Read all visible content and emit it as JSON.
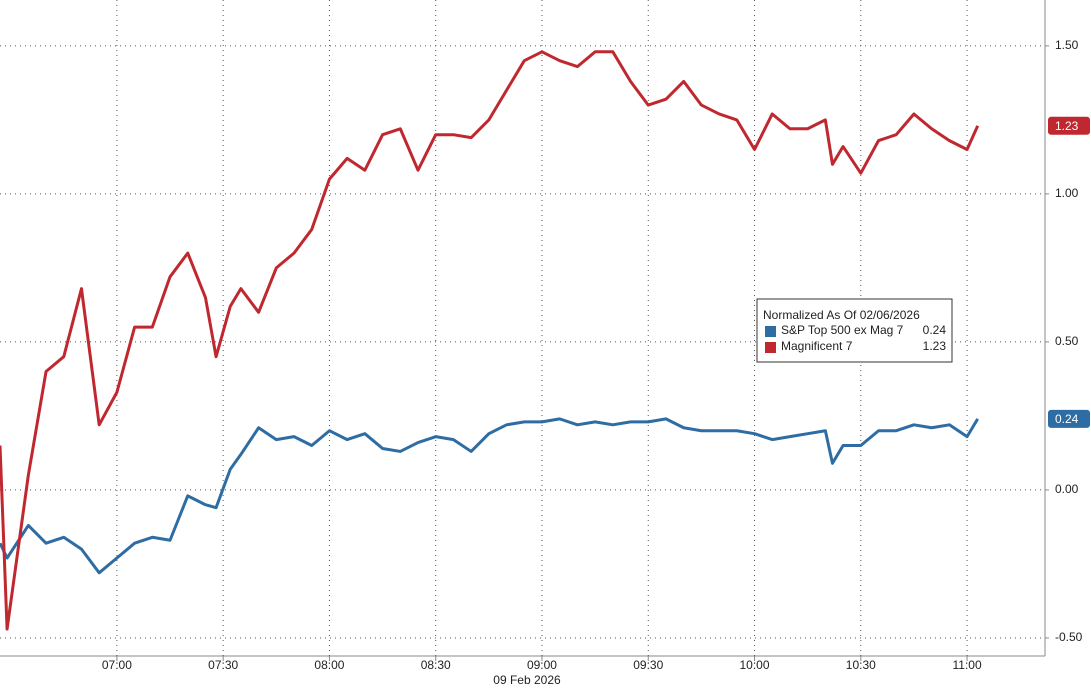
{
  "chart_data": {
    "type": "line",
    "x_label": "09 Feb 2026",
    "legend_title": "Normalized As Of 02/06/2026",
    "x": [
      "06:27",
      "06:29",
      "06:35",
      "06:40",
      "06:45",
      "06:50",
      "06:55",
      "07:00",
      "07:05",
      "07:10",
      "07:15",
      "07:20",
      "07:25",
      "07:28",
      "07:32",
      "07:35",
      "07:40",
      "07:45",
      "07:50",
      "07:55",
      "08:00",
      "08:05",
      "08:10",
      "08:15",
      "08:20",
      "08:25",
      "08:30",
      "08:35",
      "08:40",
      "08:45",
      "08:50",
      "08:55",
      "09:00",
      "09:05",
      "09:10",
      "09:15",
      "09:20",
      "09:25",
      "09:30",
      "09:35",
      "09:40",
      "09:45",
      "09:50",
      "09:55",
      "10:00",
      "10:05",
      "10:10",
      "10:15",
      "10:20",
      "10:22",
      "10:25",
      "10:30",
      "10:35",
      "10:40",
      "10:45",
      "10:50",
      "10:55",
      "11:00",
      "11:03"
    ],
    "series": [
      {
        "name": "S&P Top 500 ex Mag 7",
        "color": "#2e6ca4",
        "values": [
          -0.18,
          -0.23,
          -0.12,
          -0.18,
          -0.16,
          -0.2,
          -0.28,
          -0.23,
          -0.18,
          -0.16,
          -0.17,
          -0.02,
          -0.05,
          -0.06,
          0.07,
          0.12,
          0.21,
          0.17,
          0.18,
          0.15,
          0.2,
          0.17,
          0.19,
          0.14,
          0.13,
          0.16,
          0.18,
          0.17,
          0.13,
          0.19,
          0.22,
          0.23,
          0.23,
          0.24,
          0.22,
          0.23,
          0.22,
          0.23,
          0.23,
          0.24,
          0.21,
          0.2,
          0.2,
          0.2,
          0.19,
          0.17,
          0.18,
          0.19,
          0.2,
          0.09,
          0.15,
          0.15,
          0.2,
          0.2,
          0.22,
          0.21,
          0.22,
          0.18,
          0.24
        ]
      },
      {
        "name": "Magnificent 7",
        "color": "#c0282f",
        "values": [
          0.15,
          -0.47,
          0.05,
          0.4,
          0.45,
          0.68,
          0.22,
          0.33,
          0.55,
          0.55,
          0.72,
          0.8,
          0.65,
          0.45,
          0.62,
          0.68,
          0.6,
          0.75,
          0.8,
          0.88,
          1.05,
          1.12,
          1.08,
          1.2,
          1.22,
          1.08,
          1.2,
          1.2,
          1.19,
          1.25,
          1.35,
          1.45,
          1.48,
          1.45,
          1.43,
          1.48,
          1.48,
          1.38,
          1.3,
          1.32,
          1.38,
          1.3,
          1.27,
          1.25,
          1.15,
          1.27,
          1.22,
          1.22,
          1.25,
          1.1,
          1.16,
          1.07,
          1.18,
          1.2,
          1.27,
          1.22,
          1.18,
          1.15,
          1.23
        ]
      }
    ],
    "xlim": [
      "06:27",
      "11:22"
    ],
    "xticks": [
      "07:00",
      "07:30",
      "08:00",
      "08:30",
      "09:00",
      "09:30",
      "10:00",
      "10:30",
      "11:00"
    ],
    "ylim": [
      -0.561,
      1.655
    ],
    "yticks": [
      {
        "value": 1.5,
        "label": "1.50"
      },
      {
        "value": 1.0,
        "label": "1.00"
      },
      {
        "value": 0.5,
        "label": "0.50"
      },
      {
        "value": 0.0,
        "label": "0.00"
      },
      {
        "value": -0.5,
        "label": "-0.50"
      }
    ],
    "grid": true
  }
}
